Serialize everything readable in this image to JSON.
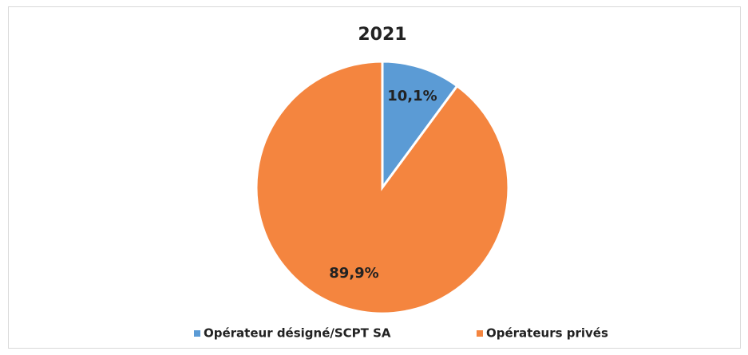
{
  "chart_data": {
    "type": "pie",
    "title": "2021",
    "categories": [
      "Opérateur désigné/SCPT SA",
      "Opérateurs privés"
    ],
    "values": [
      10.1,
      89.9
    ],
    "value_labels": [
      "10,1%",
      "89,9%"
    ],
    "colors": [
      "#5b9bd5",
      "#f4853f"
    ],
    "legend": "bottom"
  }
}
